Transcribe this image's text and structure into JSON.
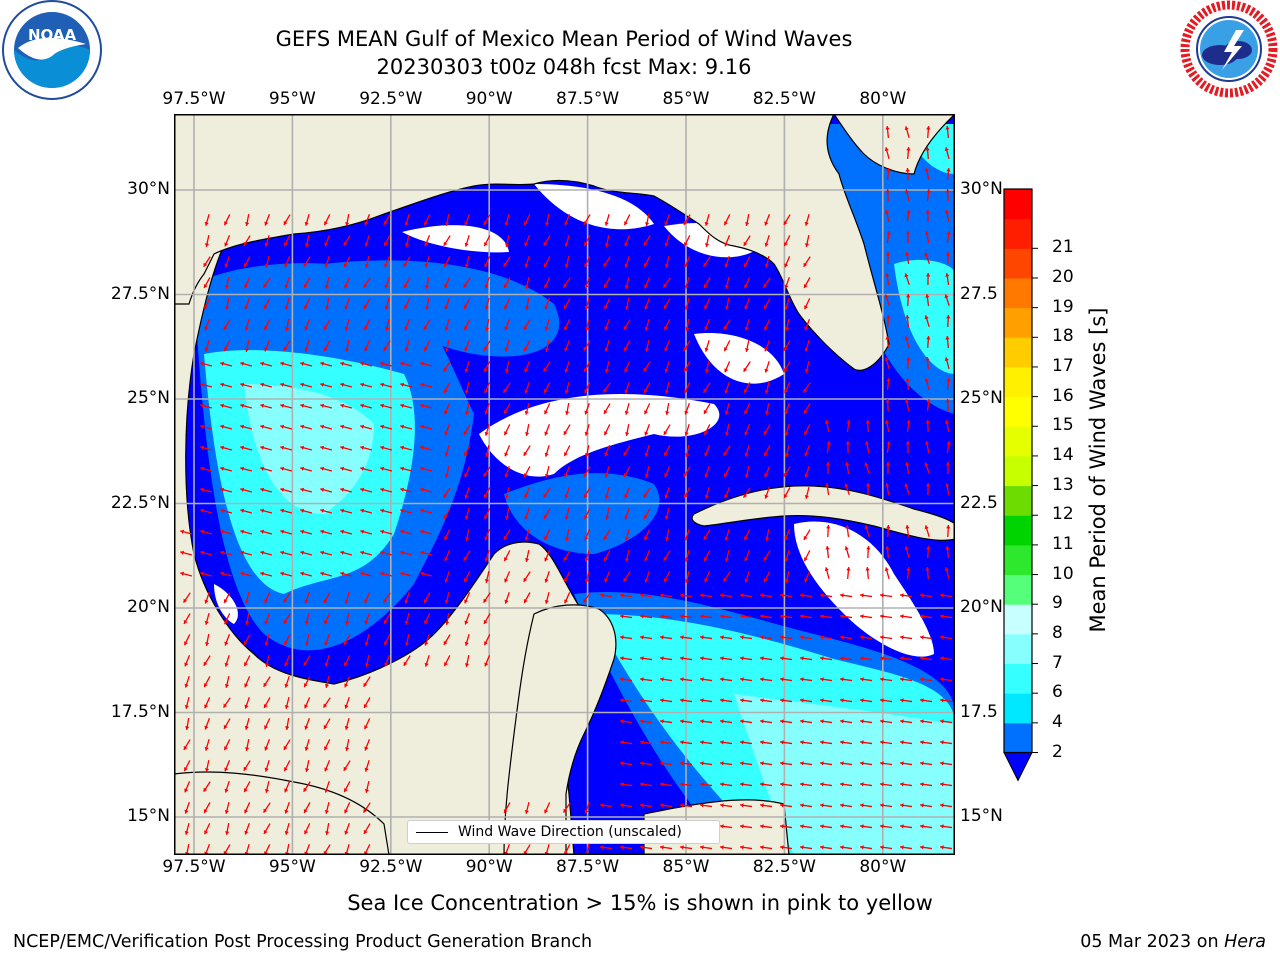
{
  "header": {
    "title_line1": "GEFS MEAN Gulf of Mexico Mean Period of Wind Waves",
    "title_line2": "20230303 t00z 048h fcst   Max: 9.16"
  },
  "logos": {
    "noaa": {
      "name": "noaa-logo",
      "text": "NOAA"
    },
    "nws": {
      "name": "nws-logo",
      "ring_text": "NATIONAL WEATHER SERVICE"
    }
  },
  "map": {
    "lon_ticks": [
      "97.5°W",
      "95°W",
      "92.5°W",
      "90°W",
      "87.5°W",
      "85°W",
      "82.5°W",
      "80°W"
    ],
    "lat_ticks_left": [
      "30°N",
      "27.5°N",
      "25°N",
      "22.5°N",
      "20°N",
      "17.5°N",
      "15°N"
    ],
    "lat_ticks_right": [
      "30°N",
      "27.5",
      "25°N",
      "22.5",
      "20°N",
      "17.5",
      "15°N"
    ],
    "legend_label": "Wind Wave Direction (unscaled)",
    "land_color": "#efeddc",
    "arrow_color": "#ff0000",
    "max_value": 9.16
  },
  "colorbar": {
    "label": "Mean Period of Wind Waves [s]",
    "ticks": [
      "2",
      "4",
      "6",
      "7",
      "8",
      "9",
      "10",
      "11",
      "12",
      "13",
      "14",
      "15",
      "16",
      "17",
      "18",
      "19",
      "20",
      "21"
    ],
    "colors": [
      "#0070ff",
      "#00e8ff",
      "#35ffff",
      "#88ffff",
      "#c8ffff",
      "#56ff7a",
      "#2ee82e",
      "#00d400",
      "#6ddc00",
      "#c8ff00",
      "#e6ff00",
      "#ffff00",
      "#fff000",
      "#ffcc00",
      "#ffa000",
      "#ff7800",
      "#ff4600",
      "#ff1e00",
      "#ff0000"
    ],
    "extend_color": "#0000ff"
  },
  "note": "Sea Ice Concentration > 15% is shown in pink to yellow",
  "footer": {
    "left": "NCEP/EMC/Verification Post Processing Product Generation Branch",
    "date": "05 Mar 2023",
    "on": "on",
    "machine": "Hera"
  }
}
